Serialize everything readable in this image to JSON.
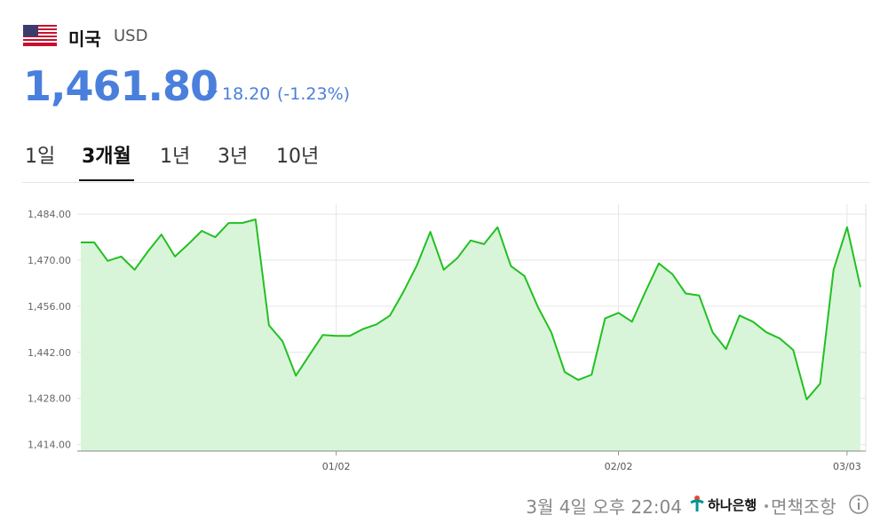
{
  "header": {
    "country": "미국",
    "currency": "USD",
    "price": "1,461.80",
    "change": "18.20",
    "change_pct": "(-1.23%)"
  },
  "tabs": {
    "items": [
      "1일",
      "3개월",
      "1년",
      "3년",
      "10년"
    ],
    "active": 1
  },
  "chart_data": {
    "type": "area",
    "categories": [
      null,
      null,
      null,
      null,
      null,
      null,
      null,
      null,
      null,
      null,
      null,
      null,
      null,
      null,
      null,
      null,
      null,
      null,
      null,
      "01/02",
      null,
      null,
      null,
      null,
      null,
      null,
      null,
      null,
      null,
      null,
      null,
      null,
      null,
      null,
      null,
      null,
      null,
      null,
      null,
      null,
      "02/02",
      null,
      null,
      null,
      null,
      null,
      null,
      null,
      null,
      null,
      null,
      null,
      null,
      null,
      null,
      null,
      null,
      "03/03",
      null
    ],
    "series": [
      {
        "name": "USD",
        "color": "#22c022",
        "fill": "#d9f5d9",
        "values": [
          1475.4,
          1475.4,
          1469.8,
          1471.1,
          1467.1,
          1472.7,
          1477.8,
          1471.1,
          1474.9,
          1478.9,
          1477.0,
          1481.3,
          1481.3,
          1482.4,
          1450.2,
          1445.4,
          1434.9,
          1441.1,
          1447.3,
          1447.0,
          1447.0,
          1449.1,
          1450.5,
          1453.2,
          1460.4,
          1468.4,
          1478.6,
          1467.1,
          1470.6,
          1476.0,
          1474.9,
          1480.0,
          1468.2,
          1465.2,
          1455.8,
          1448.1,
          1436.0,
          1433.6,
          1435.2,
          1452.3,
          1454.0,
          1451.3,
          1460.4,
          1469.0,
          1465.8,
          1459.9,
          1459.3,
          1448.1,
          1443.0,
          1453.2,
          1451.3,
          1448.1,
          1446.2,
          1442.7,
          1427.7,
          1432.5,
          1467.1,
          1480.0,
          1461.8
        ]
      }
    ],
    "ylim": [
      1412,
      1487
    ],
    "yticks": [
      {
        "value": 1414,
        "label": "1,414.00"
      },
      {
        "value": 1428,
        "label": "1,428.00"
      },
      {
        "value": 1442,
        "label": "1,442.00"
      },
      {
        "value": 1456,
        "label": "1,456.00"
      },
      {
        "value": 1470,
        "label": "1,470.00"
      },
      {
        "value": 1484,
        "label": "1,484.00"
      }
    ],
    "grid": true
  },
  "footer": {
    "timestamp": "3월 4일 오후 22:04",
    "bank": "하나은행",
    "disclaimer": "면책조항"
  }
}
